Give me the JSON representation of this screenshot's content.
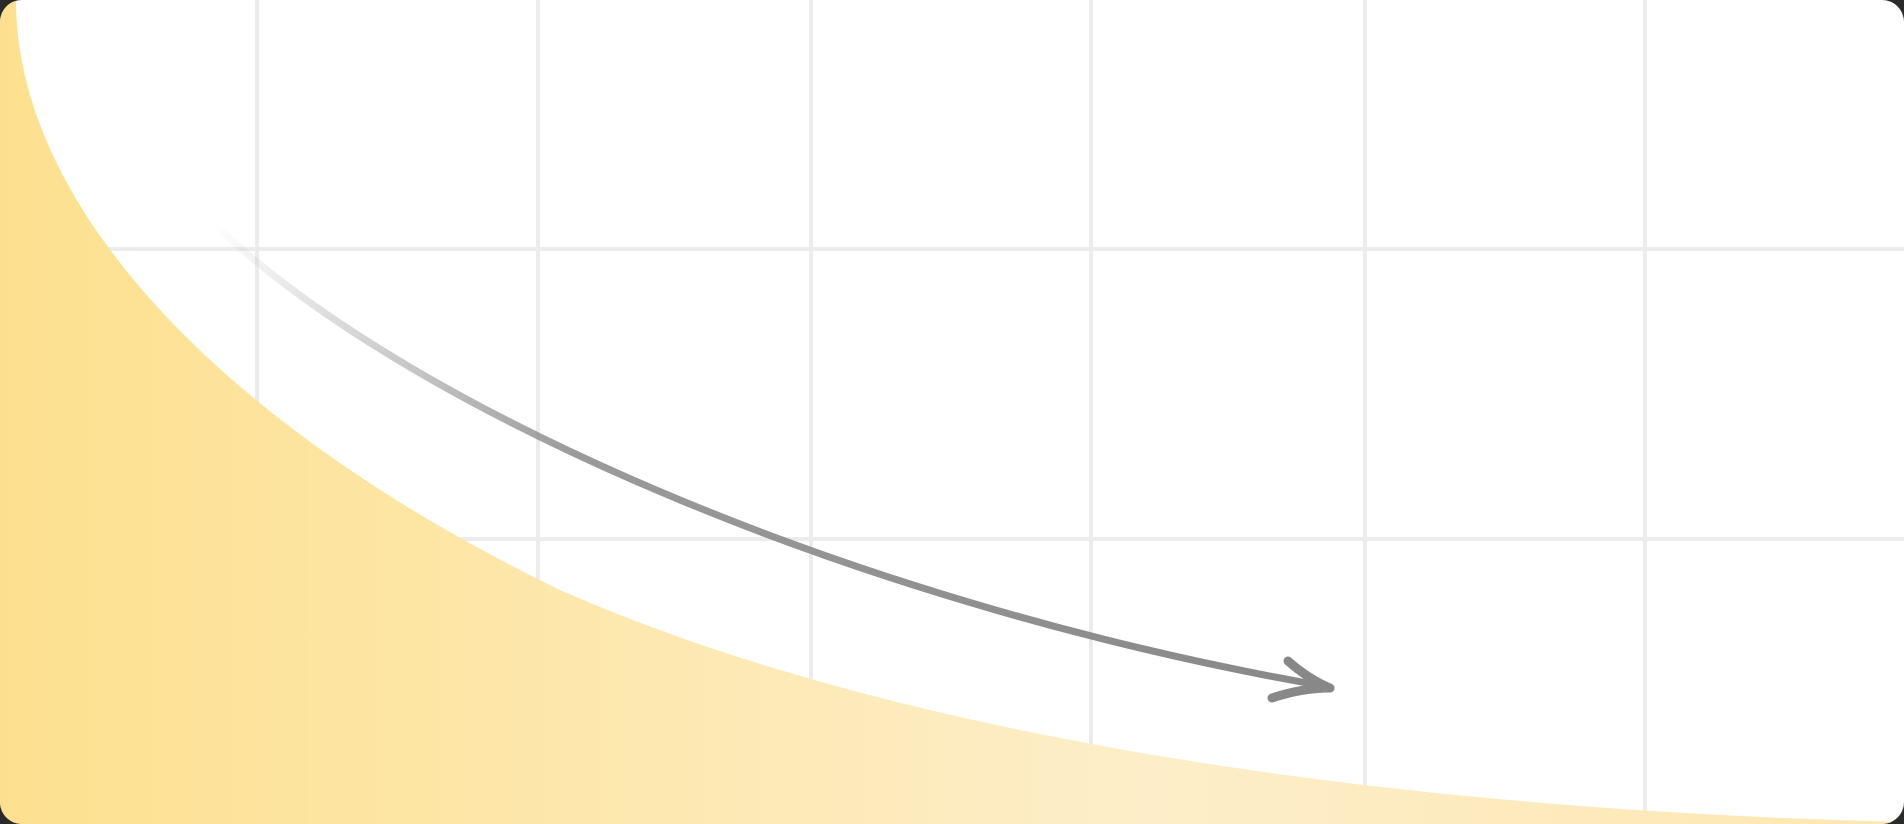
{
  "diagram": {
    "type": "decay-curve-illustration",
    "background_color": "#ffffff",
    "grid_color": "#ececec",
    "area_fill_colors": [
      "#fde08f",
      "#fdeec9",
      "#fde7b2"
    ],
    "arrow_color": "#888888",
    "arrow_direction": "down-right",
    "grid": {
      "columns": 7,
      "rows": 3
    }
  }
}
